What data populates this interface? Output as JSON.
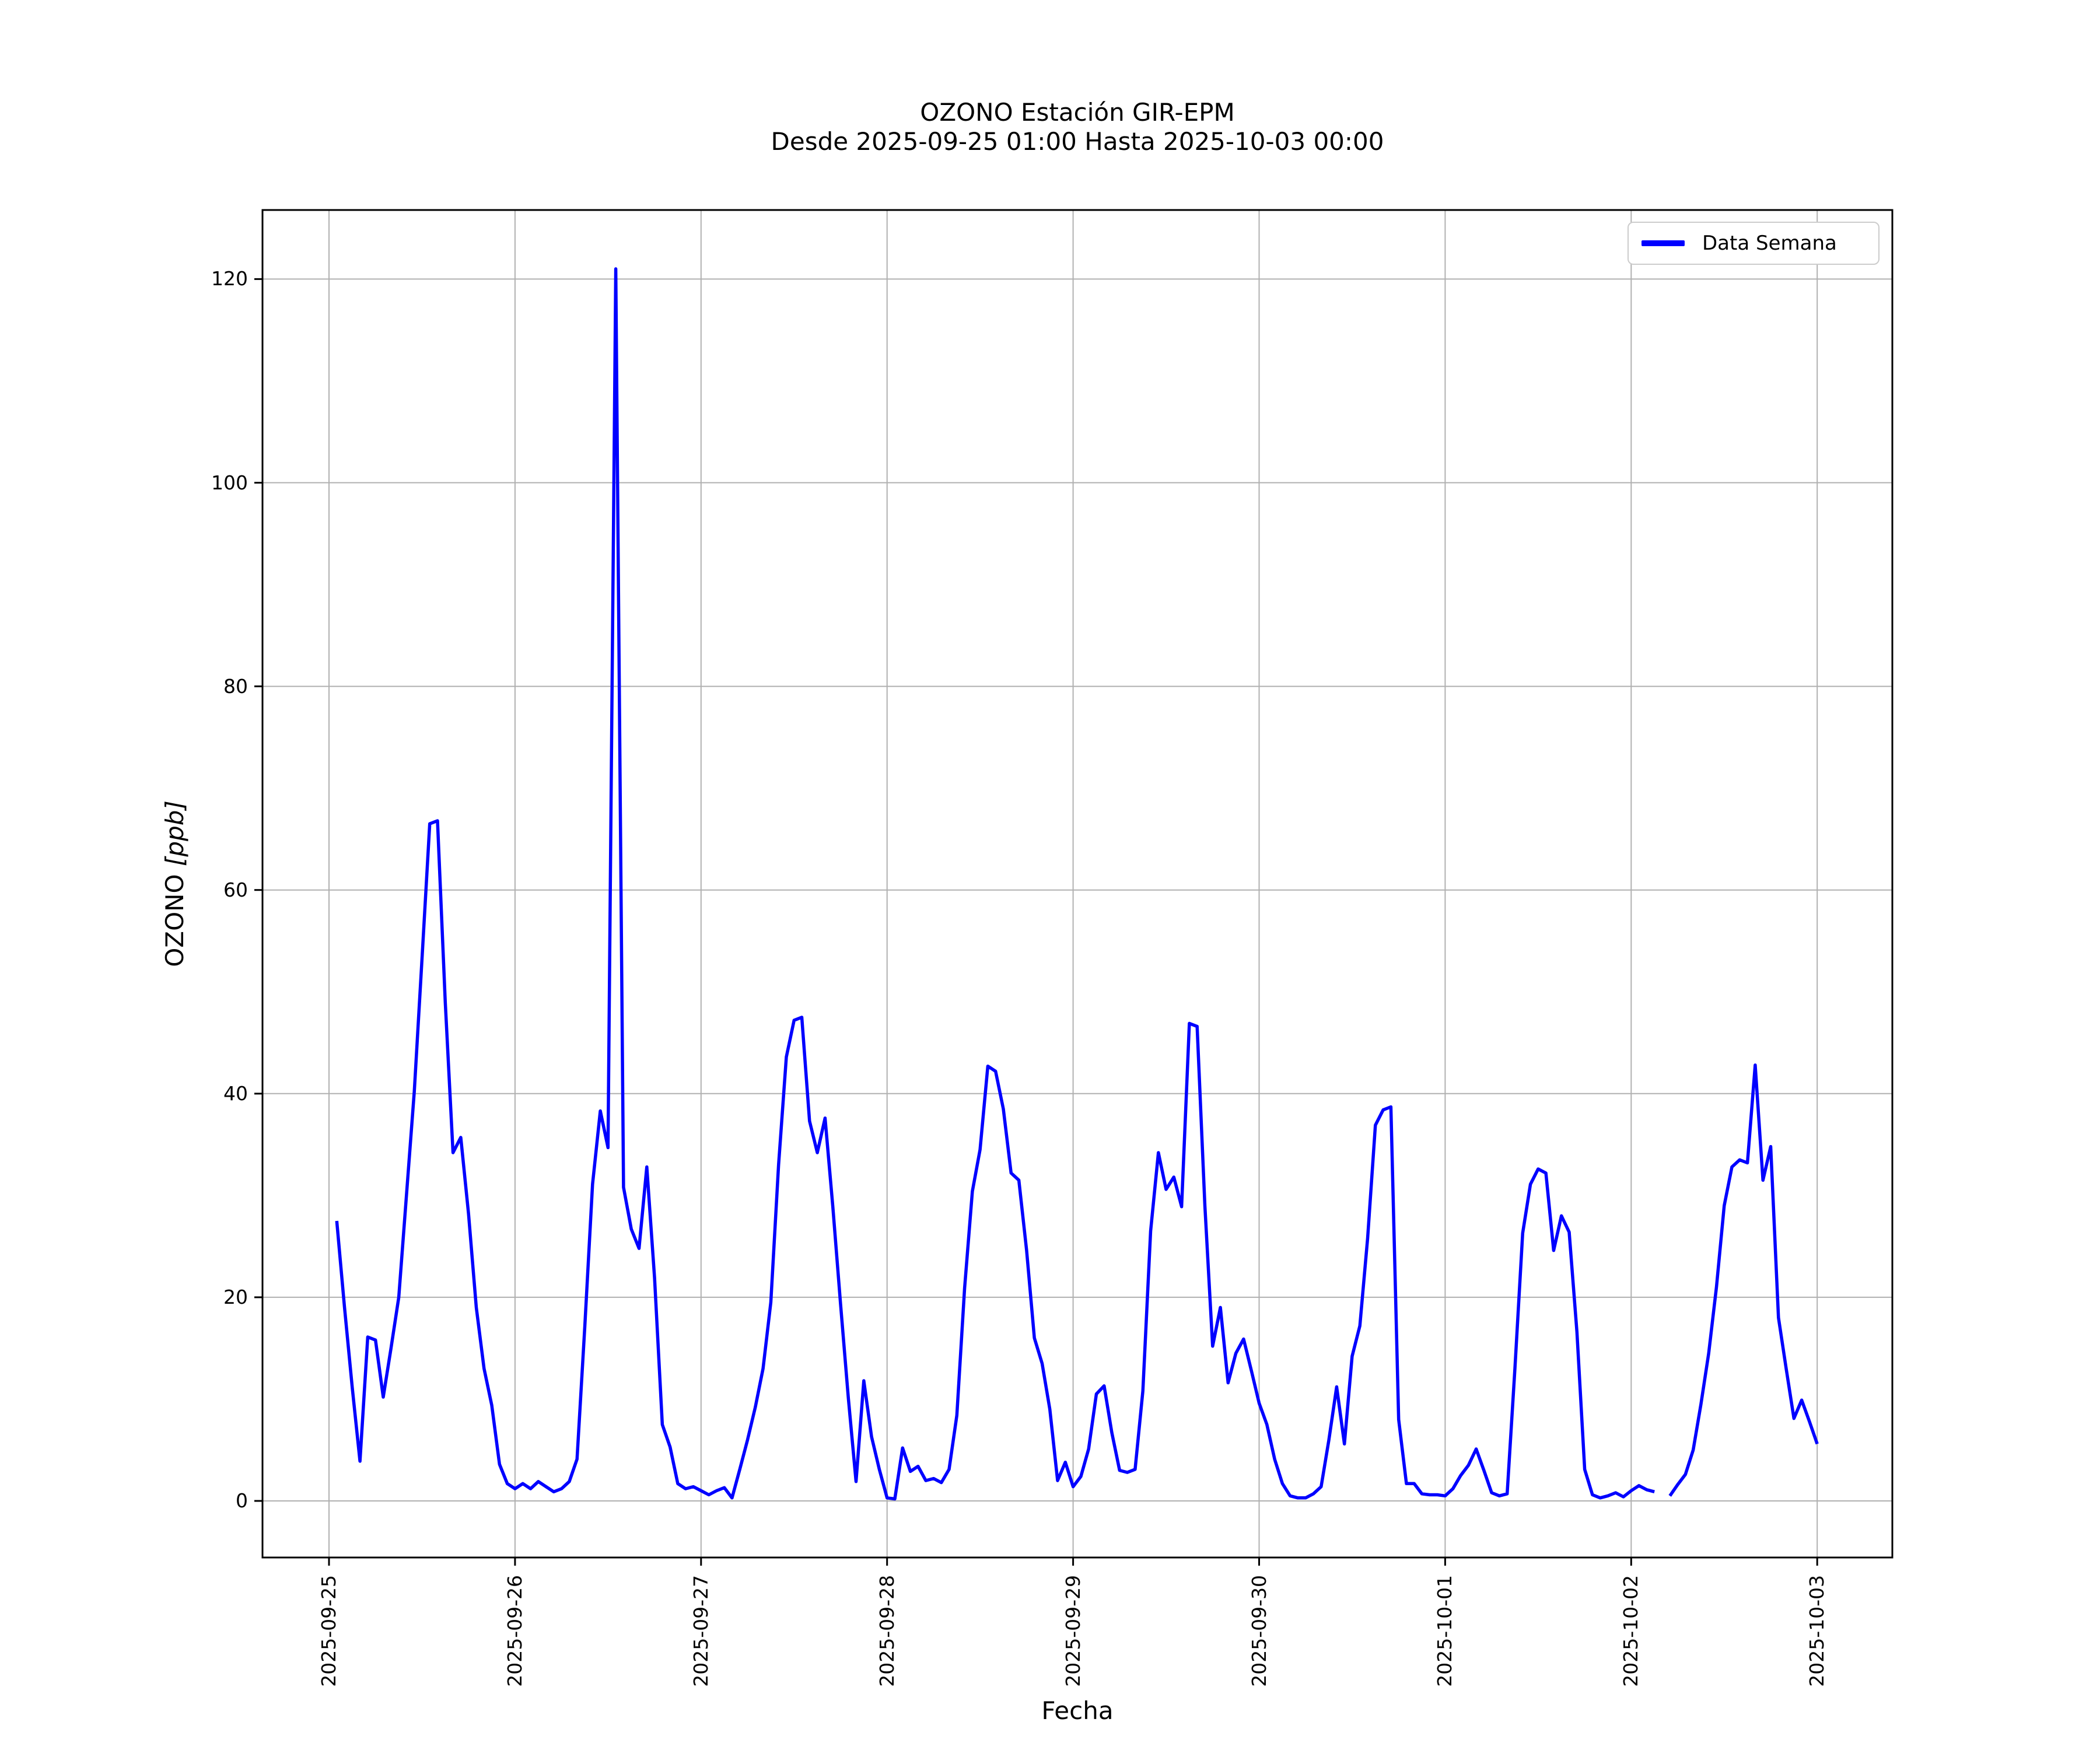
{
  "header": {
    "title": "OZONO Estación GIR-EPM",
    "subtitle": "Desde 2025-09-25 01:00 Hasta 2025-10-03 00:00"
  },
  "axes": {
    "xlabel": "Fecha",
    "ylabel_main": "OZONO",
    "ylabel_units": "[ppb]"
  },
  "legend": {
    "label": "Data Semana"
  },
  "colors": {
    "line": "#0000ff",
    "grid": "#b0b0b0",
    "spine": "#000000",
    "legend_border": "#cccccc"
  },
  "chart_data": {
    "type": "line",
    "title": "OZONO Estación GIR-EPM",
    "subtitle": "Desde 2025-09-25 01:00 Hasta 2025-10-03 00:00",
    "xlabel": "Fecha",
    "ylabel": "OZONO [ppb]",
    "grid": true,
    "legend_position": "upper right",
    "ylim": [
      -5.6,
      126.8
    ],
    "y_ticks": [
      0,
      20,
      40,
      60,
      80,
      100,
      120
    ],
    "x_tick_labels": [
      "2025-09-25",
      "2025-09-26",
      "2025-09-27",
      "2025-09-28",
      "2025-09-29",
      "2025-09-30",
      "2025-10-01",
      "2025-10-02",
      "2025-10-03"
    ],
    "x_start": "2025-09-25 01:00",
    "x_end": "2025-10-03 00:00",
    "interval_hours": 1,
    "series": [
      {
        "name": "Data Semana",
        "color": "#0000ff",
        "values": [
          27.5,
          19,
          11.1,
          3.9,
          16.1,
          15.8,
          10.2,
          15,
          20,
          30.1,
          40.2,
          53.3,
          66.5,
          66.8,
          49,
          34.2,
          35.7,
          28.2,
          19,
          13,
          9.4,
          3.6,
          1.7,
          1.2,
          1.7,
          1.2,
          1.9,
          1.4,
          0.9,
          1.2,
          1.9,
          4.1,
          17.1,
          31.1,
          38.3,
          34.7,
          121,
          30.8,
          26.7,
          24.8,
          32.8,
          21.9,
          7.5,
          5.3,
          1.7,
          1.2,
          1.4,
          1,
          0.6,
          1,
          1.3,
          0.3,
          3.1,
          6,
          9.2,
          13,
          19.5,
          33,
          43.6,
          47.2,
          47.5,
          37.3,
          34.2,
          37.6,
          28.9,
          19.3,
          10.1,
          1.9,
          11.8,
          6.3,
          3.1,
          0.3,
          0.2,
          5.2,
          2.9,
          3.4,
          2,
          2.2,
          1.8,
          3.1,
          8.4,
          20.9,
          30.4,
          34.5,
          42.7,
          42.2,
          38.5,
          32.2,
          31.5,
          24.6,
          16,
          13.5,
          9,
          2,
          3.8,
          1.4,
          2.4,
          5.1,
          10.5,
          11.3,
          6.7,
          3,
          2.8,
          3.1,
          10.8,
          26.5,
          34.2,
          30.6,
          31.8,
          28.9,
          46.9,
          46.6,
          29,
          15.2,
          19,
          11.6,
          14.5,
          15.9,
          12.8,
          9.6,
          7.5,
          4.1,
          1.7,
          0.5,
          0.3,
          0.3,
          0.7,
          1.4,
          6,
          11.2,
          5.6,
          14.2,
          17.2,
          25.8,
          36.9,
          38.4,
          38.7,
          8,
          1.7,
          1.7,
          0.7,
          0.6,
          0.6,
          0.5,
          1.2,
          2.5,
          3.5,
          5.1,
          3,
          0.8,
          0.5,
          0.7,
          13,
          26.3,
          31.1,
          32.6,
          32.2,
          24.6,
          28,
          26.4,
          16.6,
          3.1,
          0.6,
          0.3,
          0.5,
          0.8,
          0.4,
          1,
          1.5,
          1.1,
          0.9,
          null,
          0.5,
          1.6,
          2.6,
          5,
          9.5,
          14.5,
          21,
          29,
          32.8,
          33.5,
          33.2,
          42.8,
          31.5,
          34.8,
          18,
          13,
          8.1,
          9.9,
          7.8,
          5.6
        ]
      }
    ]
  }
}
